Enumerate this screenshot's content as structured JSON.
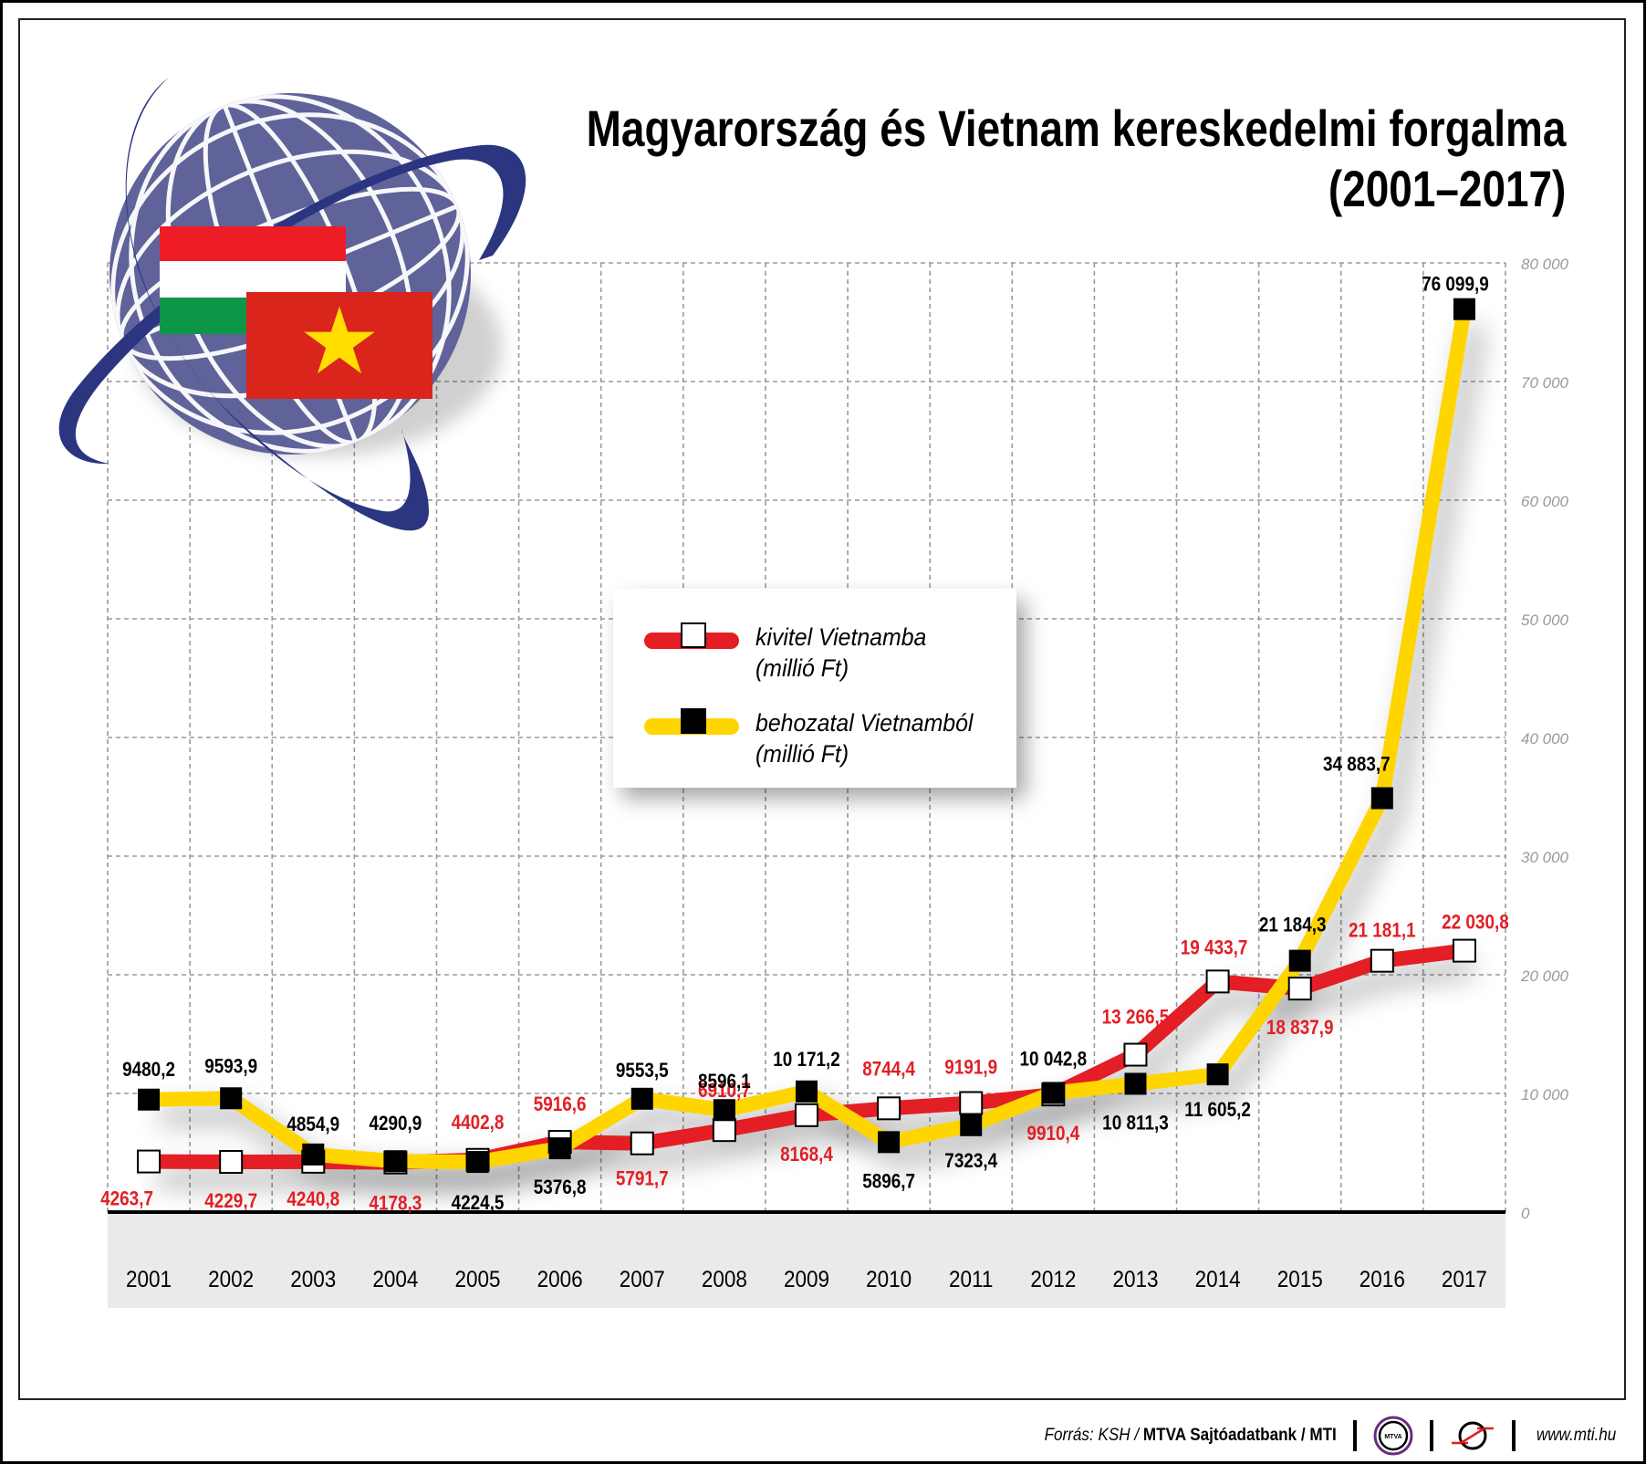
{
  "title": {
    "line1": "Magyarország és Vietnam kereskedelmi forgalma",
    "line2": "(2001–2017)"
  },
  "legend": {
    "export": {
      "line1": "kivitel Vietnamba",
      "line2": "(millió Ft)",
      "color": "#e31e24",
      "marker": "white-square"
    },
    "import": {
      "line1": "behozatal Vietnamból",
      "line2": "(millió Ft)",
      "color": "#ffd500",
      "marker": "black-square"
    }
  },
  "y_axis": {
    "ticks": [
      "0",
      "10 000",
      "20 000",
      "30 000",
      "40 000",
      "50 000",
      "60 000",
      "70 000",
      "80 000"
    ]
  },
  "x_axis": {
    "years": [
      "2001",
      "2002",
      "2003",
      "2004",
      "2005",
      "2006",
      "2007",
      "2008",
      "2009",
      "2010",
      "2011",
      "2012",
      "2013",
      "2014",
      "2015",
      "2016",
      "2017"
    ]
  },
  "labels": {
    "export": [
      "4263,7",
      "4229,7",
      "4240,8",
      "4178,3",
      "4402,8",
      "5916,6",
      "5791,7",
      "6910,7",
      "8168,4",
      "8744,4",
      "9191,9",
      "9910,4",
      "13 266,5",
      "19 433,7",
      "18 837,9",
      "21 181,1",
      "22 030,8"
    ],
    "import": [
      "9480,2",
      "9593,9",
      "4854,9",
      "4290,9",
      "4224,5",
      "5376,8",
      "9553,5",
      "8596,1",
      "10 171,2",
      "5896,7",
      "7323,4",
      "10 042,8",
      "10 811,3",
      "11 605,2",
      "21 184,3",
      "34 883,7",
      "76 099,9"
    ]
  },
  "footer": {
    "source_prefix": "Forrás: KSH / ",
    "source_bold": "MTVA Sajtóadatbank / MTI",
    "mtva_logo": "MTVA",
    "url": "www.mti.hu"
  },
  "colors": {
    "export_line": "#e31e24",
    "import_line": "#ffd500",
    "export_label": "#e31e24",
    "import_label": "#000000",
    "globe": "#5f6399",
    "orbit": "#2b3580",
    "axis_band": "#e9eaec",
    "grid": "#9a9a9a"
  },
  "chart_data": {
    "type": "line",
    "title": "Magyarország és Vietnam kereskedelmi forgalma (2001–2017)",
    "xlabel": "",
    "ylabel": "millió Ft",
    "ylim": [
      0,
      80000
    ],
    "y_ticks": [
      0,
      10000,
      20000,
      30000,
      40000,
      50000,
      60000,
      70000,
      80000
    ],
    "grid": true,
    "legend_position": "center-left (inside plot)",
    "categories": [
      "2001",
      "2002",
      "2003",
      "2004",
      "2005",
      "2006",
      "2007",
      "2008",
      "2009",
      "2010",
      "2011",
      "2012",
      "2013",
      "2014",
      "2015",
      "2016",
      "2017"
    ],
    "series": [
      {
        "name": "kivitel Vietnamba (millió Ft)",
        "color": "#e31e24",
        "values": [
          4263.7,
          4229.7,
          4240.8,
          4178.3,
          4402.8,
          5916.6,
          5791.7,
          6910.7,
          8168.4,
          8744.4,
          9191.9,
          9910.4,
          13266.5,
          19433.7,
          18837.9,
          21181.1,
          22030.8
        ]
      },
      {
        "name": "behozatal Vietnamból (millió Ft)",
        "color": "#ffd500",
        "values": [
          9480.2,
          9593.9,
          4854.9,
          4290.9,
          4224.5,
          5376.8,
          9553.5,
          8596.1,
          10171.2,
          5896.7,
          7323.4,
          10042.8,
          10811.3,
          11605.2,
          21184.3,
          34883.7,
          76099.9
        ]
      }
    ]
  }
}
